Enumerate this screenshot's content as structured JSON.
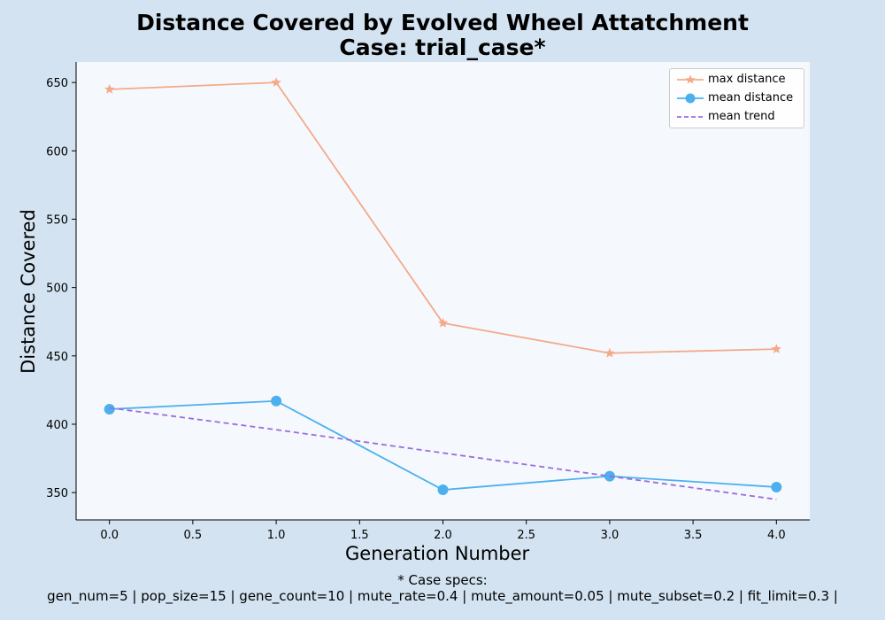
{
  "chart_data": {
    "type": "line",
    "title": "Distance Covered by Evolved Wheel Attatchment",
    "subtitle": "Case: trial_case*",
    "xlabel": "Generation Number",
    "ylabel": "Distance Covered",
    "xlim": [
      -0.2,
      4.2
    ],
    "ylim": [
      330,
      665
    ],
    "xticks": [
      "0.0",
      "0.5",
      "1.0",
      "1.5",
      "2.0",
      "2.5",
      "3.0",
      "3.5",
      "4.0"
    ],
    "yticks": [
      "350",
      "400",
      "450",
      "500",
      "550",
      "600",
      "650"
    ],
    "x": [
      0,
      1,
      2,
      3,
      4
    ],
    "series": [
      {
        "name": "max distance",
        "values": [
          645,
          650,
          474,
          452,
          455
        ],
        "color": "#f4a98a",
        "marker": "star"
      },
      {
        "name": "mean distance",
        "values": [
          411,
          417,
          352,
          362,
          354
        ],
        "color": "#4db0ee",
        "marker": "circle"
      },
      {
        "name": "mean trend",
        "values": [
          412,
          396,
          379,
          362,
          345
        ],
        "color": "#9a6ce0",
        "marker": "none",
        "dashed": true
      }
    ],
    "legend_position": "top-right",
    "grid": false,
    "plot_background": "#f5f9fd",
    "figure_background": "#d3e3f1"
  },
  "footnote": {
    "line1": "* Case specs:",
    "line2": "gen_num=5 | pop_size=15 | gene_count=10 | mute_rate=0.4 | mute_amount=0.05 | mute_subset=0.2 | fit_limit=0.3 |"
  }
}
